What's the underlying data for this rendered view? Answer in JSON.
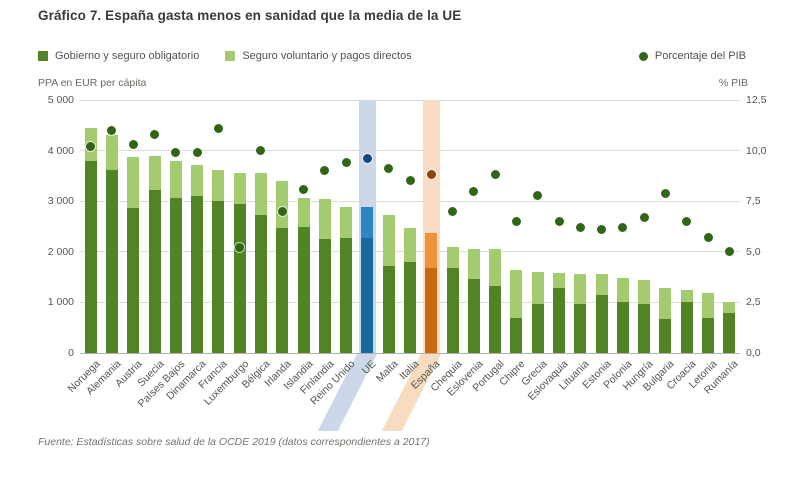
{
  "title": "Gráfico 7. España gasta menos en sanidad que la media de la UE",
  "legend": {
    "items": [
      {
        "label": "Gobierno y seguro obligatorio"
      },
      {
        "label": "Seguro voluntario y pagos directos"
      }
    ],
    "right_item": {
      "label": "Porcentaje del PIB"
    }
  },
  "axis_captions": {
    "left": "PPA en EUR per cápita",
    "right": "% PIB"
  },
  "footer": "Fuente: Estadísticas sobre salud de la OCDE 2019 (datos correspondientes a 2017)",
  "colors": {
    "bar_government": "#538327",
    "bar_voluntary": "#a5cb70",
    "dot_pib": "#316518",
    "ue_bar_dark": "#176a9e",
    "ue_bar_light": "#2e86c1",
    "ue_dot": "#16497c",
    "ue_band": "#ccd8ea",
    "es_bar_dark": "#c9690e",
    "es_bar_light": "#f09339",
    "es_dot": "#8a4510",
    "es_band": "#f8dcc1",
    "grid": "#dcdcda",
    "axis_line": "#b3b3ae",
    "text": "#56554f"
  },
  "chart_data": {
    "type": "bar",
    "variant": "stacked-bars-with-right-axis-scatter-dots",
    "title": "Gráfico 7. España gasta menos en sanidad que la media de la UE",
    "categories": [
      "Noruega",
      "Alemania",
      "Austria",
      "Suecia",
      "Países Bajos",
      "Dinamarca",
      "Francia",
      "Luxemburgo",
      "Bélgica",
      "Irlanda",
      "Islandia",
      "Finlandia",
      "Reino Unido",
      "UE",
      "Malta",
      "Italia",
      "España",
      "Chequia",
      "Eslovenia",
      "Portugal",
      "Chipre",
      "Grecia",
      "Eslovaquia",
      "Lituania",
      "Estonia",
      "Polonia",
      "Hungría",
      "Bulgaria",
      "Croacia",
      "Letonia",
      "Rumanía"
    ],
    "series": [
      {
        "name": "Gobierno y seguro obligatorio",
        "type": "bar",
        "stack": "gasto",
        "axis": "left",
        "values": [
          3800,
          3610,
          2870,
          3230,
          3060,
          3100,
          3010,
          2940,
          2720,
          2470,
          2500,
          2260,
          2270,
          2270,
          1710,
          1800,
          1675,
          1690,
          1470,
          1330,
          690,
          960,
          1280,
          960,
          1150,
          1000,
          965,
          675,
          1015,
          690,
          785
        ]
      },
      {
        "name": "Seguro voluntario y pagos directos",
        "type": "bar",
        "stack": "gasto",
        "axis": "left",
        "values": [
          650,
          700,
          1000,
          660,
          730,
          610,
          600,
          620,
          830,
          920,
          560,
          790,
          620,
          615,
          1010,
          670,
          695,
          400,
          590,
          730,
          950,
          640,
          300,
          600,
          410,
          490,
          485,
          615,
          235,
          490,
          215
        ]
      },
      {
        "name": "Porcentaje del PIB",
        "type": "scatter",
        "axis": "right",
        "values": [
          10.2,
          11.0,
          10.3,
          10.8,
          9.9,
          9.9,
          11.1,
          5.2,
          10.0,
          7.0,
          8.1,
          9.0,
          9.4,
          9.6,
          9.1,
          8.5,
          8.8,
          7.0,
          8.0,
          8.8,
          6.5,
          7.8,
          6.5,
          6.2,
          6.1,
          6.2,
          6.7,
          7.9,
          6.5,
          5.7,
          5.0
        ]
      }
    ],
    "left_axis": {
      "caption": "PPA en EUR per cápita",
      "min": 0,
      "max": 5000,
      "step": 1000,
      "ticks": [
        "5 000",
        "4 000",
        "3 000",
        "2 000",
        "1 000",
        "0"
      ]
    },
    "right_axis": {
      "caption": "% PIB",
      "min": 0,
      "max": 12.5,
      "step": 2.5,
      "ticks": [
        "12,5",
        "10,0",
        "7,5",
        "5,0",
        "2,5",
        "0,0"
      ]
    },
    "grid": "horizontal",
    "legend_position": "top",
    "highlighted_categories": [
      {
        "category": "UE",
        "style": "blue"
      },
      {
        "category": "España",
        "style": "orange"
      }
    ],
    "source": "Fuente: Estadísticas sobre salud de la OCDE 2019 (datos correspondientes a 2017)"
  }
}
